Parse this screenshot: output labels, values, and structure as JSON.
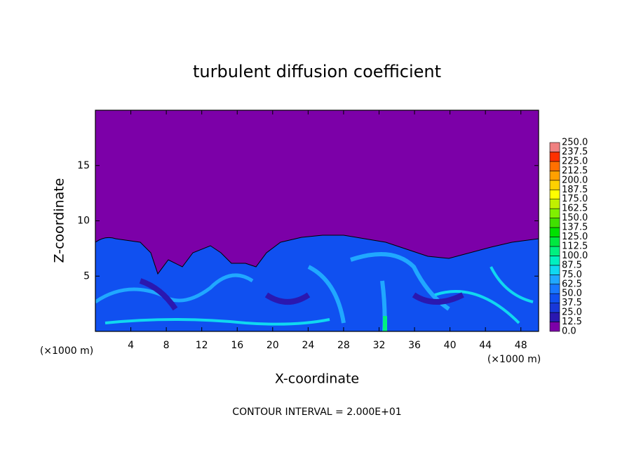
{
  "chart_data": {
    "type": "contour",
    "title": "turbulent diffusion coefficient",
    "xlabel": "X-coordinate",
    "ylabel": "Z-coordinate",
    "x_unit_label": "(×1000 m)",
    "footer": "CONTOUR INTERVAL = 2.000E+01",
    "xlim": [
      0,
      50
    ],
    "ylim": [
      0,
      20
    ],
    "xticks": [
      4,
      8,
      12,
      16,
      20,
      24,
      28,
      32,
      36,
      40,
      44,
      48
    ],
    "yticks": [
      5,
      10,
      15
    ],
    "colorbar": {
      "levels": [
        {
          "value": 0,
          "label": "0.0"
        },
        {
          "value": 12.5,
          "label": "12.5"
        },
        {
          "value": 25,
          "label": "25.0"
        },
        {
          "value": 37.5,
          "label": "37.5"
        },
        {
          "value": 50,
          "label": "50.0"
        },
        {
          "value": 62.5,
          "label": "62.5"
        },
        {
          "value": 75,
          "label": "75.0"
        },
        {
          "value": 87.5,
          "label": "87.5"
        },
        {
          "value": 100,
          "label": "100.0"
        },
        {
          "value": 112.5,
          "label": "112.5"
        },
        {
          "value": 125,
          "label": "125.0"
        },
        {
          "value": 137.5,
          "label": "137.5"
        },
        {
          "value": 150,
          "label": "150.0"
        },
        {
          "value": 162.5,
          "label": "162.5"
        },
        {
          "value": 175,
          "label": "175.0"
        },
        {
          "value": 187.5,
          "label": "187.5"
        },
        {
          "value": 200,
          "label": "200.0"
        },
        {
          "value": 212.5,
          "label": "212.5"
        },
        {
          "value": 225,
          "label": "225.0"
        },
        {
          "value": 237.5,
          "label": "237.5"
        },
        {
          "value": 250,
          "label": "250.0"
        }
      ],
      "colors": [
        "#7c00a8",
        "#2a18b0",
        "#1838d8",
        "#1050f0",
        "#1878ff",
        "#20a8ff",
        "#10d8f0",
        "#00f0c0",
        "#00f080",
        "#00e840",
        "#00e000",
        "#40e000",
        "#80f000",
        "#c0f000",
        "#ffff00",
        "#ffd000",
        "#ffa000",
        "#ff7000",
        "#ff3000",
        "#f08080"
      ]
    }
  }
}
